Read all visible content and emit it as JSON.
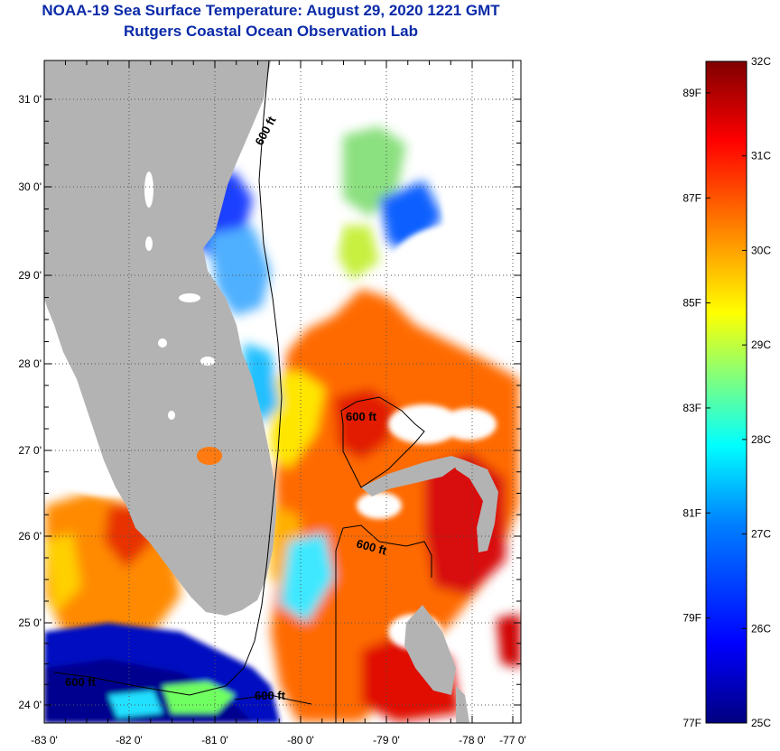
{
  "header": {
    "title": "NOAA-19 Sea Surface Temperature:  August 29, 2020 1221 GMT",
    "subtitle": "Rutgers Coastal Ocean Observation Lab"
  },
  "map": {
    "lat_ticks": [
      "31 0'",
      "30 0'",
      "29 0'",
      "28 0'",
      "27 0'",
      "26 0'",
      "25 0'",
      "24 0'"
    ],
    "lon_ticks": [
      "-83 0'",
      "-82 0'",
      "-81 0'",
      "-80 0'",
      "-79 0'",
      "-78 0'",
      "-77 0'"
    ],
    "contour_label": "600 ft",
    "land_color": "#b3b3b3",
    "cloud_color": "#ffffff"
  },
  "colorbar": {
    "celsius": [
      "32C",
      "31C",
      "30C",
      "29C",
      "28C",
      "27C",
      "26C",
      "25C"
    ],
    "fahrenheit": [
      "89F",
      "87F",
      "85F",
      "83F",
      "81F",
      "79F",
      "77F"
    ],
    "colors": [
      "#00007f",
      "#0000ff",
      "#007fff",
      "#00ffff",
      "#7fff7f",
      "#ffff00",
      "#ff7f00",
      "#ff0000",
      "#7f0000"
    ]
  }
}
